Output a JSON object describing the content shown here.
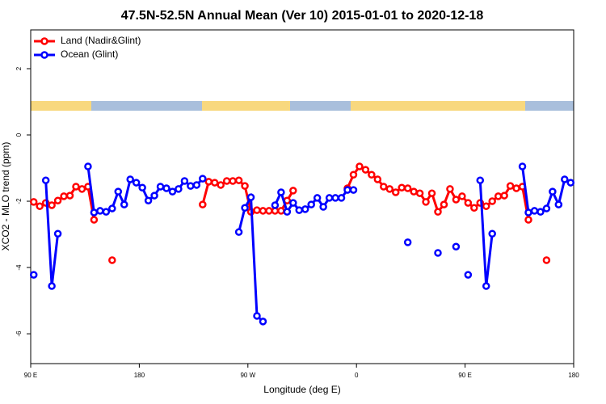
{
  "chart_data": {
    "type": "line",
    "title": "47.5N-52.5N Annual Mean (Ver 10)   2015-01-01 to 2020-12-18",
    "x_label": "Longitude (deg E)",
    "y_label": "XCO2 - MLO trend (ppm)",
    "xlim": [
      90,
      540
    ],
    "ylim": [
      -6.9,
      3.17
    ],
    "xticks": [
      {
        "value": 90,
        "label": "90 E"
      },
      180,
      {
        "value": 270,
        "label": "90 W"
      },
      {
        "value": 360,
        "label": "0"
      },
      {
        "value": 450,
        "label": "90 E"
      },
      {
        "value": 540,
        "label": "180"
      }
    ],
    "yticks": [
      -6,
      -4,
      -2,
      0,
      2
    ],
    "legend": "top-left",
    "x": [
      92.5,
      97.5,
      102.5,
      107.5,
      112.5,
      117.5,
      122.5,
      127.5,
      132.5,
      137.5,
      142.5,
      147.5,
      152.5,
      157.5,
      162.5,
      167.5,
      172.5,
      177.5,
      182.5,
      187.5,
      192.5,
      197.5,
      202.5,
      207.5,
      212.5,
      217.5,
      222.5,
      227.5,
      232.5,
      237.5,
      242.5,
      247.5,
      252.5,
      257.5,
      262.5,
      267.5,
      272.5,
      277.5,
      282.5,
      287.5,
      292.5,
      297.5,
      302.5,
      307.5,
      312.5,
      317.5,
      322.5,
      327.5,
      332.5,
      337.5,
      342.5,
      347.5,
      352.5,
      357.5,
      362.5,
      367.5,
      372.5,
      377.5,
      382.5,
      387.5,
      392.5,
      397.5,
      402.5,
      407.5,
      412.5,
      417.5,
      422.5,
      427.5,
      432.5,
      437.5,
      442.5,
      447.5,
      452.5,
      457.5,
      462.5,
      467.5,
      472.5,
      477.5,
      482.5,
      487.5,
      492.5,
      497.5,
      502.5,
      507.5,
      512.5,
      517.5,
      522.5,
      527.5,
      532.5,
      537.5
    ],
    "series": [
      {
        "name": "Land (Nadir&Glint)",
        "color": "#ff0000",
        "values": [
          -2.02,
          -2.15,
          -2.05,
          -2.12,
          -1.98,
          -1.85,
          -1.83,
          -1.56,
          -1.63,
          -1.56,
          -2.56,
          null,
          null,
          -3.78,
          null,
          null,
          null,
          null,
          null,
          null,
          null,
          null,
          null,
          null,
          null,
          null,
          null,
          null,
          -2.1,
          -1.41,
          -1.44,
          -1.51,
          -1.39,
          -1.39,
          -1.37,
          -1.54,
          -2.32,
          -2.27,
          -2.29,
          -2.29,
          -2.29,
          -2.29,
          -1.98,
          -1.68,
          null,
          null,
          null,
          null,
          null,
          null,
          null,
          null,
          -1.61,
          -1.2,
          -0.95,
          -1.05,
          -1.2,
          -1.34,
          -1.56,
          -1.63,
          -1.73,
          -1.59,
          -1.61,
          -1.71,
          -1.76,
          -2.02,
          -1.76,
          -2.32,
          -2.1,
          -1.63,
          -1.95,
          -1.85,
          -2.05,
          -2.2,
          -2.05,
          -2.15,
          -2.0,
          -1.85,
          -1.83,
          -1.54,
          -1.61,
          -1.56,
          -2.56,
          null,
          null,
          -3.78,
          null,
          null,
          null,
          null
        ]
      },
      {
        "name": "Ocean (Glint)",
        "color": "#0000ff",
        "values": [
          -4.22,
          null,
          -1.37,
          -4.56,
          -2.98,
          null,
          null,
          null,
          null,
          -0.95,
          -2.34,
          -2.29,
          -2.32,
          -2.22,
          -1.71,
          -2.1,
          -1.34,
          -1.44,
          -1.59,
          -1.98,
          -1.83,
          -1.56,
          -1.61,
          -1.71,
          -1.63,
          -1.39,
          -1.54,
          -1.51,
          -1.32,
          null,
          null,
          null,
          null,
          null,
          -2.93,
          -2.2,
          -1.88,
          -5.46,
          -5.63,
          null,
          -2.12,
          -1.73,
          -2.32,
          -2.05,
          -2.27,
          -2.24,
          -2.1,
          -1.9,
          -2.17,
          -1.9,
          -1.9,
          -1.9,
          -1.66,
          -1.66,
          null,
          null,
          null,
          null,
          null,
          null,
          null,
          null,
          -3.24,
          null,
          null,
          null,
          null,
          -3.56,
          null,
          null,
          -3.37,
          null,
          -4.22,
          null,
          -1.37,
          -4.56,
          -2.98,
          null,
          null,
          null,
          null,
          -0.95,
          -2.34,
          -2.29,
          -2.32,
          -2.22,
          -1.71,
          -2.1,
          -1.34,
          -1.44
        ]
      }
    ]
  }
}
